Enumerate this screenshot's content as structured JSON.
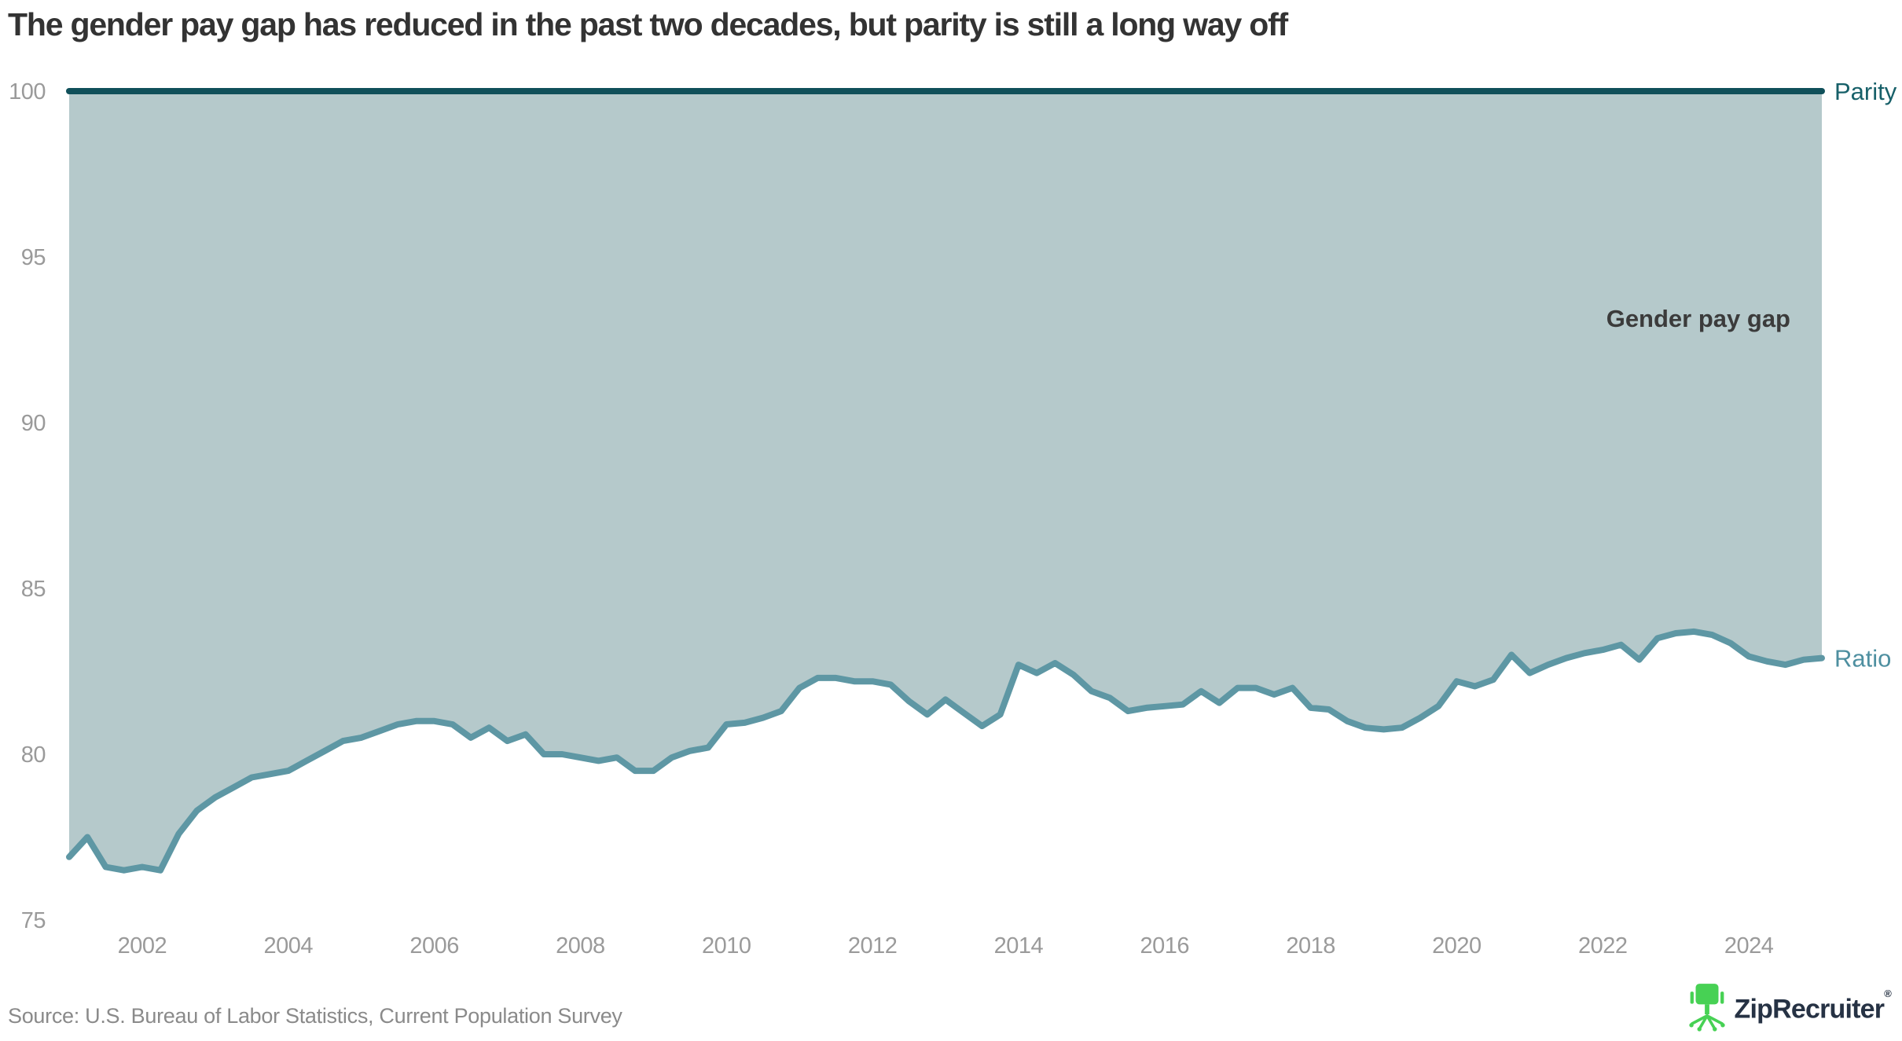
{
  "header": {
    "title": "The gender pay gap has reduced in the past two decades, but parity is still a long way off"
  },
  "footer": {
    "source": "Source: U.S. Bureau of Labor Statistics, Current Population Survey",
    "logo_text": "ZipRecruiter",
    "logo_reg_mark": "®"
  },
  "chart_data": {
    "type": "area",
    "title": "The gender pay gap has reduced in the past two decades, but parity is still a long way off",
    "xlabel": "",
    "ylabel": "",
    "grid": false,
    "legend_position": "inline-right-annotations",
    "x_axis": {
      "tick_years": [
        2002,
        2004,
        2006,
        2008,
        2010,
        2012,
        2014,
        2016,
        2018,
        2020,
        2022,
        2024
      ],
      "range": [
        2001,
        2025
      ]
    },
    "y_axis": {
      "ticks": [
        100,
        95,
        90,
        85,
        80,
        75
      ],
      "range": [
        75,
        100
      ]
    },
    "annotations": {
      "parity_label": "Parity",
      "ratio_label": "Ratio",
      "area_label": "Gender pay gap"
    },
    "parity_value": 100,
    "series": [
      {
        "name": "Ratio (women's-to-men's earnings, %)",
        "x_start": 2001,
        "x_step": 0.25,
        "values": [
          76.9,
          77.5,
          76.6,
          76.5,
          76.6,
          76.5,
          77.6,
          78.3,
          78.7,
          79.0,
          79.3,
          79.4,
          79.5,
          79.8,
          80.1,
          80.4,
          80.5,
          80.7,
          80.9,
          81.0,
          81.0,
          80.9,
          80.5,
          80.8,
          80.4,
          80.6,
          80.0,
          80.0,
          79.9,
          79.8,
          79.9,
          79.5,
          79.5,
          79.9,
          80.1,
          80.2,
          80.9,
          80.95,
          81.1,
          81.3,
          82.0,
          82.3,
          82.3,
          82.2,
          82.2,
          82.1,
          81.6,
          81.2,
          81.65,
          81.25,
          80.85,
          81.2,
          82.7,
          82.45,
          82.75,
          82.4,
          81.9,
          81.7,
          81.3,
          81.4,
          81.45,
          81.5,
          81.9,
          81.55,
          82.0,
          82.0,
          81.8,
          82.0,
          81.4,
          81.35,
          81.0,
          80.8,
          80.75,
          80.8,
          81.1,
          81.45,
          82.2,
          82.05,
          82.25,
          83.0,
          82.45,
          82.7,
          82.9,
          83.05,
          83.15,
          83.3,
          82.85,
          83.5,
          83.65,
          83.7,
          83.6,
          83.35,
          82.95,
          82.8,
          82.7,
          82.85,
          82.9
        ]
      }
    ],
    "colors": {
      "area_fill": "#B5C9CB",
      "ratio_line": "#5E97A4",
      "parity_line": "#10505A",
      "parity_text": "#176069",
      "ratio_text": "#4E8FA0",
      "area_label_text": "#3B3B3B",
      "tick_text": "#9A9A9A",
      "title_text": "#333333",
      "source_text": "#8A8A8A",
      "logo_green": "#47D154",
      "logo_navy": "#263244"
    }
  }
}
